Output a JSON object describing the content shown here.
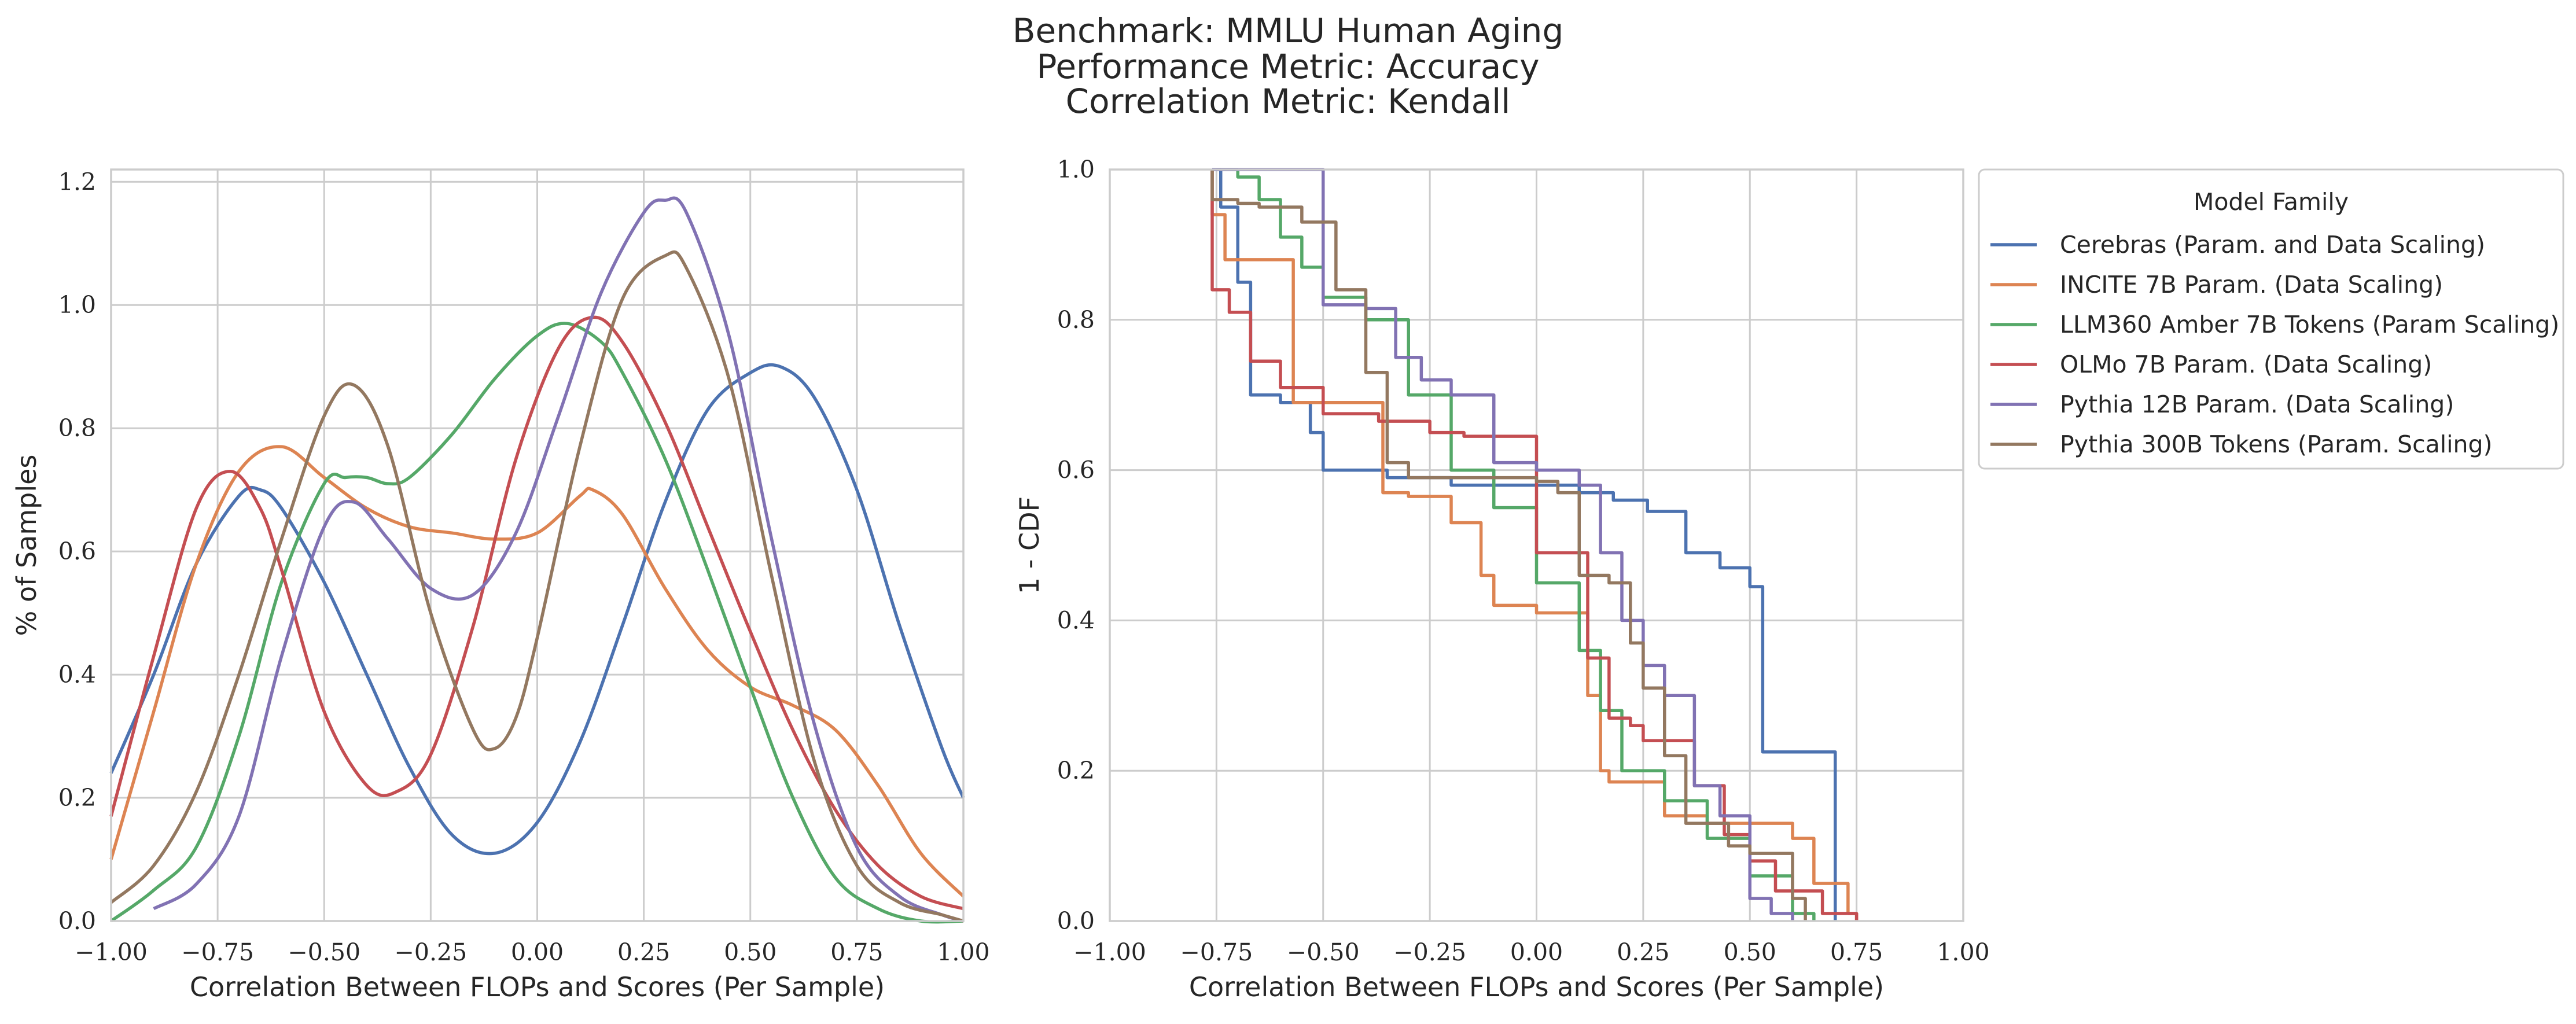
{
  "figure": {
    "title_lines": [
      "Benchmark: MMLU Human Aging",
      "Performance Metric: Accuracy",
      "Correlation Metric: Kendall"
    ]
  },
  "chart_data": [
    {
      "type": "line",
      "panel": "kde",
      "xlabel": "Correlation Between FLOPs and Scores (Per Sample)",
      "ylabel": "% of Samples",
      "xlim": [
        -1.0,
        1.0
      ],
      "ylim": [
        0.0,
        1.22
      ],
      "xticks": [
        -1.0,
        -0.75,
        -0.5,
        -0.25,
        0.0,
        0.25,
        0.5,
        0.75,
        1.0
      ],
      "xtick_labels": [
        "−1.00",
        "−0.75",
        "−0.50",
        "−0.25",
        "0.00",
        "0.25",
        "0.50",
        "0.75",
        "1.00"
      ],
      "yticks": [
        0.0,
        0.2,
        0.4,
        0.6,
        0.8,
        1.0,
        1.2
      ],
      "ytick_labels": [
        "0.0",
        "0.2",
        "0.4",
        "0.6",
        "0.8",
        "1.0",
        "1.2"
      ],
      "grid": true,
      "series": [
        {
          "name": "Cerebras (Param. and Data Scaling)",
          "color": "#4c72b0",
          "x": [
            -1.0,
            -0.9,
            -0.8,
            -0.7,
            -0.65,
            -0.6,
            -0.5,
            -0.4,
            -0.3,
            -0.2,
            -0.1,
            0.0,
            0.1,
            0.2,
            0.3,
            0.4,
            0.5,
            0.57,
            0.65,
            0.75,
            0.85,
            0.95,
            1.0
          ],
          "y": [
            0.24,
            0.4,
            0.58,
            0.69,
            0.7,
            0.67,
            0.55,
            0.4,
            0.25,
            0.14,
            0.11,
            0.16,
            0.29,
            0.48,
            0.68,
            0.83,
            0.89,
            0.9,
            0.85,
            0.7,
            0.48,
            0.28,
            0.2
          ]
        },
        {
          "name": "INCITE 7B Param. (Data Scaling)",
          "color": "#dd8452",
          "x": [
            -1.0,
            -0.9,
            -0.8,
            -0.7,
            -0.6,
            -0.5,
            -0.4,
            -0.3,
            -0.2,
            -0.1,
            0.0,
            0.1,
            0.13,
            0.2,
            0.3,
            0.4,
            0.5,
            0.6,
            0.7,
            0.8,
            0.9,
            1.0
          ],
          "y": [
            0.1,
            0.34,
            0.58,
            0.73,
            0.77,
            0.72,
            0.67,
            0.64,
            0.63,
            0.62,
            0.63,
            0.69,
            0.7,
            0.66,
            0.54,
            0.44,
            0.38,
            0.35,
            0.31,
            0.22,
            0.11,
            0.04
          ]
        },
        {
          "name": "LLM360 Amber 7B Tokens (Param Scaling)",
          "color": "#55a868",
          "x": [
            -1.0,
            -0.9,
            -0.8,
            -0.7,
            -0.6,
            -0.5,
            -0.45,
            -0.4,
            -0.35,
            -0.3,
            -0.2,
            -0.1,
            0.0,
            0.07,
            0.15,
            0.2,
            0.3,
            0.4,
            0.5,
            0.6,
            0.7,
            0.8,
            0.9,
            1.0
          ],
          "y": [
            0.0,
            0.05,
            0.12,
            0.3,
            0.55,
            0.71,
            0.72,
            0.72,
            0.71,
            0.72,
            0.79,
            0.88,
            0.95,
            0.97,
            0.94,
            0.89,
            0.75,
            0.57,
            0.38,
            0.2,
            0.07,
            0.02,
            0.0,
            0.0
          ]
        },
        {
          "name": "OLMo 7B Param. (Data Scaling)",
          "color": "#c44e52",
          "x": [
            -1.0,
            -0.9,
            -0.8,
            -0.72,
            -0.65,
            -0.6,
            -0.5,
            -0.4,
            -0.33,
            -0.25,
            -0.15,
            -0.05,
            0.05,
            0.13,
            0.2,
            0.3,
            0.4,
            0.5,
            0.6,
            0.7,
            0.8,
            0.9,
            1.0
          ],
          "y": [
            0.17,
            0.43,
            0.67,
            0.73,
            0.67,
            0.57,
            0.34,
            0.22,
            0.21,
            0.27,
            0.48,
            0.75,
            0.93,
            0.98,
            0.94,
            0.81,
            0.64,
            0.47,
            0.31,
            0.18,
            0.09,
            0.04,
            0.02
          ]
        },
        {
          "name": "Pythia 12B Param. (Data Scaling)",
          "color": "#8172b3",
          "x": [
            -0.9,
            -0.8,
            -0.7,
            -0.6,
            -0.5,
            -0.43,
            -0.35,
            -0.25,
            -0.15,
            -0.05,
            0.05,
            0.15,
            0.25,
            0.3,
            0.35,
            0.45,
            0.55,
            0.65,
            0.75,
            0.85,
            0.95,
            1.0
          ],
          "y": [
            0.02,
            0.06,
            0.17,
            0.43,
            0.64,
            0.68,
            0.62,
            0.54,
            0.53,
            0.63,
            0.82,
            1.02,
            1.15,
            1.17,
            1.15,
            0.95,
            0.62,
            0.32,
            0.12,
            0.04,
            0.01,
            0.0
          ]
        },
        {
          "name": "Pythia 300B Tokens (Param. Scaling)",
          "color": "#937860",
          "x": [
            -1.0,
            -0.9,
            -0.8,
            -0.7,
            -0.6,
            -0.5,
            -0.43,
            -0.35,
            -0.25,
            -0.15,
            -0.1,
            -0.05,
            0.0,
            0.1,
            0.2,
            0.3,
            0.35,
            0.45,
            0.55,
            0.65,
            0.75,
            0.85,
            0.95,
            1.0
          ],
          "y": [
            0.03,
            0.09,
            0.21,
            0.4,
            0.62,
            0.82,
            0.87,
            0.77,
            0.5,
            0.31,
            0.28,
            0.33,
            0.46,
            0.77,
            1.01,
            1.08,
            1.06,
            0.88,
            0.56,
            0.26,
            0.09,
            0.03,
            0.01,
            0.0
          ]
        }
      ]
    },
    {
      "type": "line",
      "step": true,
      "panel": "survival",
      "xlabel": "Correlation Between FLOPs and Scores (Per Sample)",
      "ylabel": "1 - CDF",
      "xlim": [
        -1.0,
        1.0
      ],
      "ylim": [
        0.0,
        1.0
      ],
      "xticks": [
        -1.0,
        -0.75,
        -0.5,
        -0.25,
        0.0,
        0.25,
        0.5,
        0.75,
        1.0
      ],
      "xtick_labels": [
        "−1.00",
        "−0.75",
        "−0.50",
        "−0.25",
        "0.00",
        "0.25",
        "0.50",
        "0.75",
        "1.00"
      ],
      "yticks": [
        0.0,
        0.2,
        0.4,
        0.6,
        0.8,
        1.0
      ],
      "ytick_labels": [
        "0.0",
        "0.2",
        "0.4",
        "0.6",
        "0.8",
        "1.0"
      ],
      "grid": true,
      "legend": {
        "title": "Model Family",
        "placement": "outside-right"
      },
      "series": [
        {
          "name": "Cerebras (Param. and Data Scaling)",
          "color": "#4c72b0",
          "x": [
            -0.76,
            -0.74,
            -0.7,
            -0.67,
            -0.6,
            -0.53,
            -0.5,
            -0.35,
            -0.2,
            0.0,
            0.1,
            0.18,
            0.26,
            0.35,
            0.43,
            0.5,
            0.53,
            0.7
          ],
          "y": [
            1.0,
            0.95,
            0.85,
            0.7,
            0.69,
            0.65,
            0.6,
            0.59,
            0.58,
            0.58,
            0.57,
            0.56,
            0.545,
            0.49,
            0.47,
            0.445,
            0.225,
            0.0
          ]
        },
        {
          "name": "INCITE 7B Param. (Data Scaling)",
          "color": "#dd8452",
          "x": [
            -0.76,
            -0.73,
            -0.6,
            -0.57,
            -0.5,
            -0.36,
            -0.3,
            -0.2,
            -0.13,
            -0.1,
            0.0,
            0.12,
            0.15,
            0.17,
            0.3,
            0.4,
            0.6,
            0.65,
            0.73,
            0.75
          ],
          "y": [
            0.94,
            0.88,
            0.88,
            0.69,
            0.69,
            0.57,
            0.565,
            0.53,
            0.46,
            0.42,
            0.41,
            0.3,
            0.2,
            0.185,
            0.14,
            0.13,
            0.11,
            0.05,
            0.01,
            0.0
          ]
        },
        {
          "name": "LLM360 Amber 7B Tokens (Param Scaling)",
          "color": "#55a868",
          "x": [
            -0.75,
            -0.7,
            -0.65,
            -0.6,
            -0.55,
            -0.5,
            -0.4,
            -0.3,
            -0.2,
            -0.1,
            0.0,
            0.1,
            0.15,
            0.2,
            0.3,
            0.4,
            0.5,
            0.6,
            0.65
          ],
          "y": [
            1.0,
            0.99,
            0.96,
            0.91,
            0.87,
            0.83,
            0.8,
            0.7,
            0.6,
            0.55,
            0.45,
            0.36,
            0.28,
            0.2,
            0.16,
            0.11,
            0.06,
            0.01,
            0.0
          ]
        },
        {
          "name": "OLMo 7B Param. (Data Scaling)",
          "color": "#c44e52",
          "x": [
            -0.76,
            -0.72,
            -0.67,
            -0.6,
            -0.5,
            -0.37,
            -0.25,
            -0.17,
            0.0,
            0.12,
            0.17,
            0.22,
            0.25,
            0.37,
            0.44,
            0.5,
            0.56,
            0.67,
            0.75
          ],
          "y": [
            0.84,
            0.81,
            0.745,
            0.71,
            0.675,
            0.665,
            0.65,
            0.645,
            0.49,
            0.35,
            0.27,
            0.26,
            0.24,
            0.18,
            0.115,
            0.08,
            0.04,
            0.01,
            0.0
          ]
        },
        {
          "name": "Pythia 12B Param. (Data Scaling)",
          "color": "#8172b3",
          "x": [
            -0.76,
            -0.5,
            -0.45,
            -0.4,
            -0.33,
            -0.27,
            -0.2,
            -0.1,
            0.0,
            0.1,
            0.15,
            0.2,
            0.25,
            0.3,
            0.37,
            0.43,
            0.5,
            0.55,
            0.6
          ],
          "y": [
            1.0,
            0.82,
            0.82,
            0.815,
            0.75,
            0.72,
            0.7,
            0.61,
            0.6,
            0.58,
            0.49,
            0.4,
            0.34,
            0.3,
            0.18,
            0.14,
            0.03,
            0.01,
            0.0
          ]
        },
        {
          "name": "Pythia 300B Tokens (Param. Scaling)",
          "color": "#937860",
          "x": [
            -0.76,
            -0.7,
            -0.65,
            -0.55,
            -0.47,
            -0.4,
            -0.35,
            -0.3,
            -0.2,
            0.0,
            0.05,
            0.1,
            0.17,
            0.22,
            0.25,
            0.3,
            0.35,
            0.45,
            0.5,
            0.6,
            0.63
          ],
          "y": [
            0.96,
            0.955,
            0.95,
            0.93,
            0.84,
            0.73,
            0.61,
            0.59,
            0.59,
            0.585,
            0.57,
            0.46,
            0.45,
            0.37,
            0.31,
            0.22,
            0.13,
            0.1,
            0.09,
            0.03,
            0.0
          ]
        }
      ]
    }
  ]
}
